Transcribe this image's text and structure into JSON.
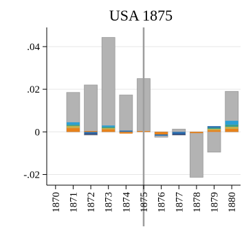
{
  "chart_data": {
    "type": "bar",
    "title": "USA 1875",
    "xlabel": "",
    "ylabel": "",
    "categories": [
      "1870",
      "1871",
      "1872",
      "1873",
      "1874",
      "1875",
      "1876",
      "1877",
      "1878",
      "1879",
      "1880"
    ],
    "ylim": [
      -0.025,
      0.049
    ],
    "yticks": [
      -0.02,
      0,
      0.02,
      0.04
    ],
    "ytick_labels": [
      "-.02",
      "0",
      ".02",
      ".04"
    ],
    "grid": true,
    "event_year": "1875",
    "bars": [
      {
        "x": "1871",
        "low": 0.0,
        "high": 0.0185
      },
      {
        "x": "1872",
        "low": -0.0015,
        "high": 0.022
      },
      {
        "x": "1873",
        "low": 0.0,
        "high": 0.0443
      },
      {
        "x": "1874",
        "low": -0.0005,
        "high": 0.0173
      },
      {
        "x": "1875",
        "low": 0.0,
        "high": 0.025
      },
      {
        "x": "1876",
        "low": -0.0025,
        "high": 0.0
      },
      {
        "x": "1877",
        "low": -0.0015,
        "high": 0.0013
      },
      {
        "x": "1878",
        "low": -0.0213,
        "high": 0.0
      },
      {
        "x": "1879",
        "low": -0.0095,
        "high": 0.0025
      },
      {
        "x": "1880",
        "low": 0.0,
        "high": 0.019
      }
    ],
    "stacks": [
      {
        "x": "1871",
        "segments": [
          {
            "low": 0.0,
            "high": 0.0018,
            "color": "#e8821b"
          },
          {
            "low": 0.0018,
            "high": 0.0028,
            "color": "#c7b04a"
          },
          {
            "low": 0.0028,
            "high": 0.0034,
            "color": "#3a9e8a"
          },
          {
            "low": 0.0034,
            "high": 0.0045,
            "color": "#2a9fd6"
          }
        ]
      },
      {
        "x": "1872",
        "segments": [
          {
            "low": -0.0008,
            "high": 0.0,
            "color": "#2a6fb0"
          },
          {
            "low": -0.0013,
            "high": -0.0008,
            "color": "#1f3f7a"
          },
          {
            "low": 0.0,
            "high": 0.0004,
            "color": "#e8821b"
          }
        ]
      },
      {
        "x": "1873",
        "segments": [
          {
            "low": 0.0,
            "high": 0.0012,
            "color": "#e8821b"
          },
          {
            "low": 0.0012,
            "high": 0.0018,
            "color": "#c7b04a"
          },
          {
            "low": 0.0018,
            "high": 0.0024,
            "color": "#3a9e8a"
          },
          {
            "low": 0.0024,
            "high": 0.003,
            "color": "#2a9fd6"
          }
        ]
      },
      {
        "x": "1874",
        "segments": [
          {
            "low": -0.0008,
            "high": 0.0,
            "color": "#e8821b"
          },
          {
            "low": 0.0,
            "high": 0.0006,
            "color": "#2a6fb0"
          }
        ]
      },
      {
        "x": "1875",
        "segments": [
          {
            "low": 0.0,
            "high": 0.0004,
            "color": "#e8821b"
          }
        ]
      },
      {
        "x": "1876",
        "segments": [
          {
            "low": -0.0012,
            "high": 0.0,
            "color": "#e8821b"
          },
          {
            "low": -0.0018,
            "high": -0.0012,
            "color": "#2a6fb0"
          }
        ]
      },
      {
        "x": "1877",
        "segments": [
          {
            "low": -0.0009,
            "high": 0.0,
            "color": "#2a6fb0"
          },
          {
            "low": -0.0014,
            "high": -0.0009,
            "color": "#1f3f7a"
          }
        ]
      },
      {
        "x": "1878",
        "segments": [
          {
            "low": -0.0006,
            "high": 0.0,
            "color": "#e8821b"
          }
        ]
      },
      {
        "x": "1879",
        "segments": [
          {
            "low": 0.0,
            "high": 0.0008,
            "color": "#e8821b"
          },
          {
            "low": 0.0008,
            "high": 0.0014,
            "color": "#c7b04a"
          },
          {
            "low": 0.0014,
            "high": 0.002,
            "color": "#3a9e8a"
          },
          {
            "low": 0.002,
            "high": 0.0027,
            "color": "#2a6fb0"
          }
        ]
      },
      {
        "x": "1880",
        "segments": [
          {
            "low": 0.0,
            "high": 0.0014,
            "color": "#e8821b"
          },
          {
            "low": 0.0014,
            "high": 0.0024,
            "color": "#c7b04a"
          },
          {
            "low": 0.0024,
            "high": 0.0034,
            "color": "#3a9e8a"
          },
          {
            "low": 0.0034,
            "high": 0.0052,
            "color": "#2a9fd6"
          }
        ]
      }
    ]
  }
}
